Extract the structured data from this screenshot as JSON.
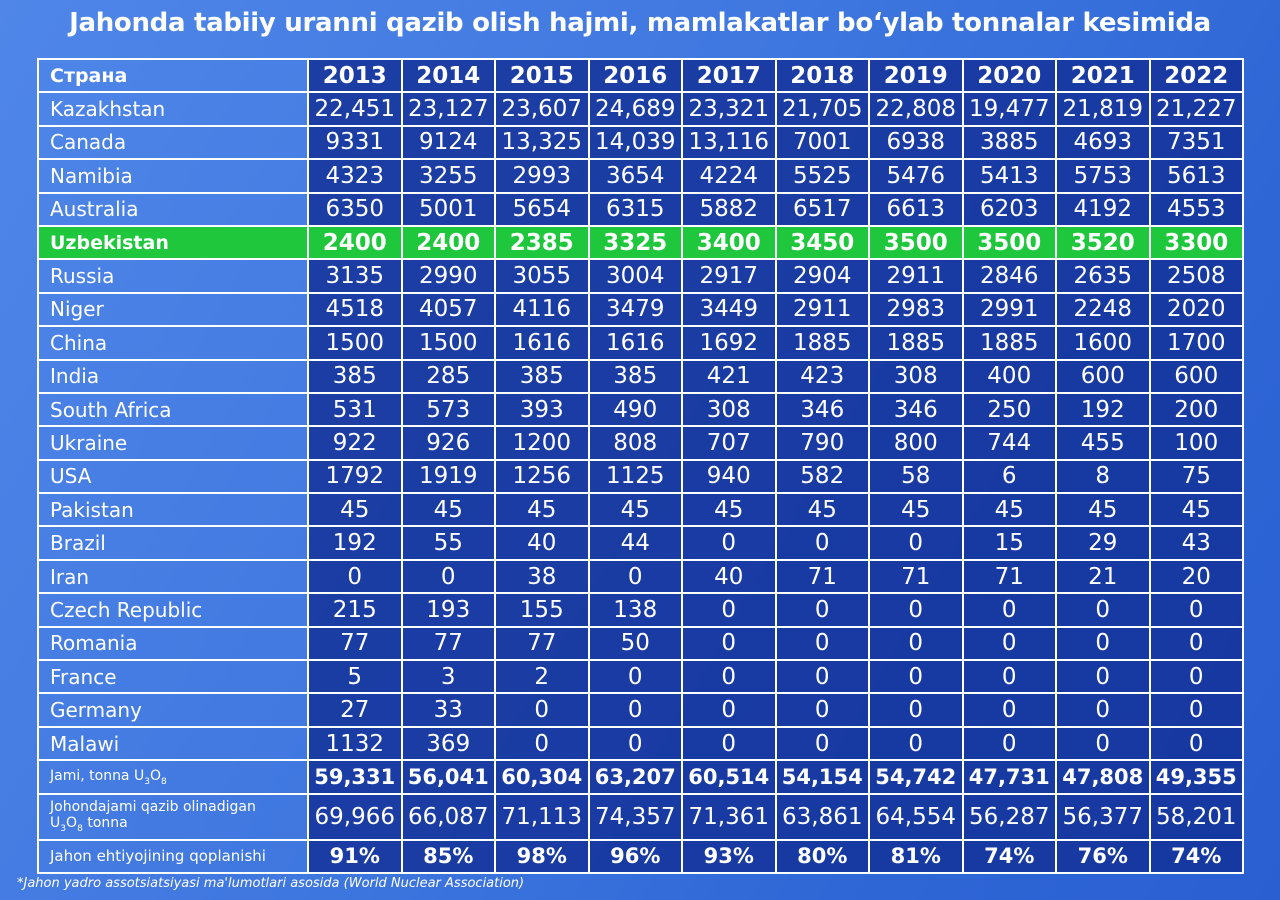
{
  "title": "Jahonda tabiiy uranni qazib olish hajmi, mamlakatlar bo‘ylab tonnalar kesimida",
  "header": {
    "label": "Страна",
    "years": [
      "2013",
      "2014",
      "2015",
      "2016",
      "2017",
      "2018",
      "2019",
      "2020",
      "2021",
      "2022"
    ]
  },
  "rows": [
    {
      "country": "Kazakhstan",
      "values": [
        "22,451",
        "23,127",
        "23,607",
        "24,689",
        "23,321",
        "21,705",
        "22,808",
        "19,477",
        "21,819",
        "21,227"
      ]
    },
    {
      "country": "Canada",
      "values": [
        "9331",
        "9124",
        "13,325",
        "14,039",
        "13,116",
        "7001",
        "6938",
        "3885",
        "4693",
        "7351"
      ]
    },
    {
      "country": "Namibia",
      "values": [
        "4323",
        "3255",
        "2993",
        "3654",
        "4224",
        "5525",
        "5476",
        "5413",
        "5753",
        "5613"
      ]
    },
    {
      "country": "Australia",
      "values": [
        "6350",
        "5001",
        "5654",
        "6315",
        "5882",
        "6517",
        "6613",
        "6203",
        "4192",
        "4553"
      ]
    },
    {
      "country": "Uzbekistan",
      "highlight": true,
      "values": [
        "2400",
        "2400",
        "2385",
        "3325",
        "3400",
        "3450",
        "3500",
        "3500",
        "3520",
        "3300"
      ]
    },
    {
      "country": "Russia",
      "values": [
        "3135",
        "2990",
        "3055",
        "3004",
        "2917",
        "2904",
        "2911",
        "2846",
        "2635",
        "2508"
      ]
    },
    {
      "country": "Niger",
      "values": [
        "4518",
        "4057",
        "4116",
        "3479",
        "3449",
        "2911",
        "2983",
        "2991",
        "2248",
        "2020"
      ]
    },
    {
      "country": "China",
      "values": [
        "1500",
        "1500",
        "1616",
        "1616",
        "1692",
        "1885",
        "1885",
        "1885",
        "1600",
        "1700"
      ]
    },
    {
      "country": "India",
      "values": [
        "385",
        "285",
        "385",
        "385",
        "421",
        "423",
        "308",
        "400",
        "600",
        "600"
      ]
    },
    {
      "country": "South Africa",
      "values": [
        "531",
        "573",
        "393",
        "490",
        "308",
        "346",
        "346",
        "250",
        "192",
        "200"
      ]
    },
    {
      "country": "Ukraine",
      "values": [
        "922",
        "926",
        "1200",
        "808",
        "707",
        "790",
        "800",
        "744",
        "455",
        "100"
      ]
    },
    {
      "country": "USA",
      "values": [
        "1792",
        "1919",
        "1256",
        "1125",
        "940",
        "582",
        "58",
        "6",
        "8",
        "75"
      ]
    },
    {
      "country": "Pakistan",
      "values": [
        "45",
        "45",
        "45",
        "45",
        "45",
        "45",
        "45",
        "45",
        "45",
        "45"
      ]
    },
    {
      "country": "Brazil",
      "values": [
        "192",
        "55",
        "40",
        "44",
        "0",
        "0",
        "0",
        "15",
        "29",
        "43"
      ]
    },
    {
      "country": "Iran",
      "values": [
        "0",
        "0",
        "38",
        "0",
        "40",
        "71",
        "71",
        "71",
        "21",
        "20"
      ]
    },
    {
      "country": "Czech Republic",
      "values": [
        "215",
        "193",
        "155",
        "138",
        "0",
        "0",
        "0",
        "0",
        "0",
        "0"
      ]
    },
    {
      "country": "Romania",
      "values": [
        "77",
        "77",
        "77",
        "50",
        "0",
        "0",
        "0",
        "0",
        "0",
        "0"
      ]
    },
    {
      "country": "France",
      "values": [
        "5",
        "3",
        "2",
        "0",
        "0",
        "0",
        "0",
        "0",
        "0",
        "0"
      ]
    },
    {
      "country": "Germany",
      "values": [
        "27",
        "33",
        "0",
        "0",
        "0",
        "0",
        "0",
        "0",
        "0",
        "0"
      ]
    },
    {
      "country": "Malawi",
      "values": [
        "1132",
        "369",
        "0",
        "0",
        "0",
        "0",
        "0",
        "0",
        "0",
        "0"
      ]
    }
  ],
  "total": {
    "label_text": "Jami, tonna U",
    "label_sub_3": "3",
    "label_mid": "O",
    "label_sub_8": "8",
    "values": [
      "59,331",
      "56,041",
      "60,304",
      "63,207",
      "60,514",
      "54,154",
      "54,742",
      "47,731",
      "47,808",
      "49,355"
    ]
  },
  "world": {
    "label_line1": "Johondajami qazib olinadigan",
    "label_u": "U",
    "label_sub_3": "3",
    "label_o": "O",
    "label_sub_8": "8",
    "label_tail": " tonna",
    "values": [
      "69,966",
      "66,087",
      "71,113",
      "74,357",
      "71,361",
      "63,861",
      "64,554",
      "56,287",
      "56,377",
      "58,201"
    ]
  },
  "coverage": {
    "label": "Jahon ehtiyojining qoplanishi",
    "values": [
      "91%",
      "85%",
      "98%",
      "96%",
      "93%",
      "80%",
      "81%",
      "74%",
      "76%",
      "74%"
    ]
  },
  "footnote": "*Jahon yadro assotsiatsiyasi ma'lumotlari asosida (World Nuclear Association)"
}
